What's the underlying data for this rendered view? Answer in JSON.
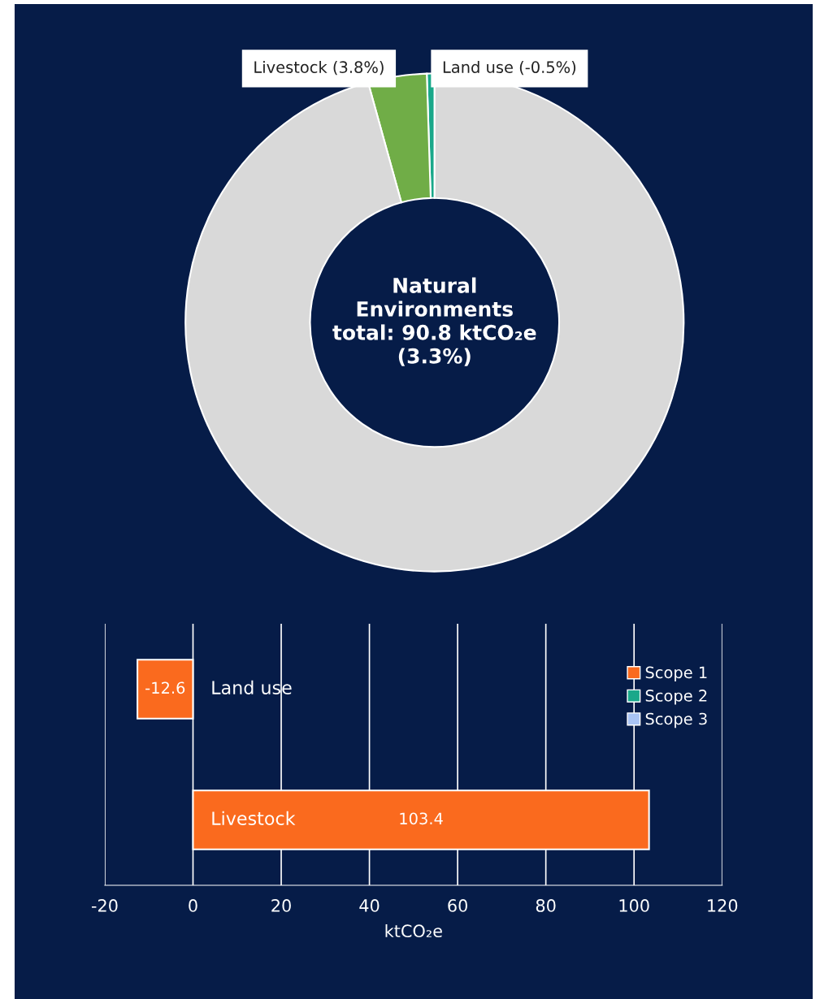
{
  "chart_data": [
    {
      "type": "donut",
      "categories": [
        "Land use (-0.5%)",
        "Livestock (3.8%)",
        null
      ],
      "values": [
        0.5,
        3.8,
        95.7
      ],
      "colors": [
        "#1aa88a",
        "#70ad47",
        "#d9d9d9"
      ],
      "annotations": [
        "Natural\nEnvironments\ntotal: 90.8 ktCO₂e\n(3.3%)"
      ],
      "legend": false
    },
    {
      "type": "bar",
      "orientation": "horizontal",
      "categories": [
        "Land use",
        "Livestock"
      ],
      "series": [
        {
          "name": "Scope 1",
          "color": "#fa6a1e",
          "values": [
            -12.6,
            103.4
          ]
        },
        {
          "name": "Scope 2",
          "color": "#1aa88a",
          "values": [
            null,
            null
          ]
        },
        {
          "name": "Scope 3",
          "color": "#a9c4f5",
          "values": [
            null,
            null
          ]
        }
      ],
      "xlim": [
        -20,
        120
      ],
      "xticks": [
        -20,
        0,
        20,
        40,
        60,
        80,
        100,
        120
      ],
      "xlabel": "ktCO₂e",
      "grid": "x",
      "legend": "right",
      "data_labels": true,
      "tick_labels": "x"
    }
  ]
}
